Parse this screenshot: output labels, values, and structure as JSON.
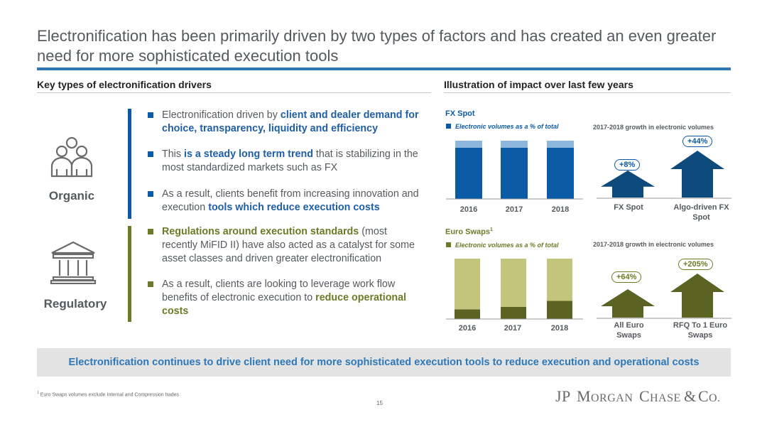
{
  "title": "Electronification has been primarily driven by two types of factors and has created an even greater need for more sophisticated execution tools",
  "left_section": {
    "heading": "Key types of electronification drivers",
    "organic": {
      "label": "Organic",
      "icon": "people-group-icon",
      "bullets": [
        {
          "parts": [
            {
              "t": "Electronification driven by ",
              "h": false
            },
            {
              "t": "client and dealer demand for choice, transparency, liquidity and efficiency",
              "h": true
            }
          ]
        },
        {
          "parts": [
            {
              "t": "This ",
              "h": false
            },
            {
              "t": "is a steady long term trend",
              "h": true
            },
            {
              "t": " that is stabilizing in the most standardized markets such as FX",
              "h": false
            }
          ]
        },
        {
          "parts": [
            {
              "t": "As a result, clients benefit from increasing innovation and execution ",
              "h": false
            },
            {
              "t": "tools which reduce execution costs",
              "h": true
            }
          ]
        }
      ]
    },
    "regulatory": {
      "label": "Regulatory",
      "icon": "bank-building-icon",
      "bullets": [
        {
          "parts": [
            {
              "t": "Regulations around execution standards",
              "h": true
            },
            {
              "t": " (most recently MiFID II) have also acted as a catalyst for some asset classes and driven greater electronification",
              "h": false
            }
          ]
        },
        {
          "parts": [
            {
              "t": "As a result, clients are looking to leverage work flow benefits of electronic execution to ",
              "h": false
            },
            {
              "t": "reduce operational costs",
              "h": true
            }
          ]
        }
      ]
    }
  },
  "right_section": {
    "heading": "Illustration of impact over last few years"
  },
  "colors": {
    "blue": "#0b5aa6",
    "blue_light": "#8db6dc",
    "navy": "#0f4a7d",
    "olive": "#6d7a27",
    "olive_dark": "#5b6322",
    "olive_light": "#c3c57c",
    "accent_blue": "#2f78b8"
  },
  "chart_data": [
    {
      "type": "bar",
      "title": "FX Spot",
      "legend": "Electronic volumes as a % of total",
      "categories": [
        "2016",
        "2017",
        "2018"
      ],
      "stacked": true,
      "series": [
        {
          "name": "Electronic volumes as a % of total",
          "values": [
            88,
            88,
            88
          ]
        },
        {
          "values": [
            12,
            12,
            12
          ]
        }
      ],
      "ylim": [
        0,
        100
      ]
    },
    {
      "type": "bar",
      "title": "2017-2018 growth in electronic volumes",
      "categories": [
        "FX Spot",
        "Algo-driven FX Spot"
      ],
      "values": [
        8,
        44
      ],
      "data_labels": [
        "+8%",
        "+44%"
      ]
    },
    {
      "type": "bar",
      "title": "Euro Swaps",
      "title_superscript": "1",
      "legend": "Electronic volumes as a % of total",
      "categories": [
        "2016",
        "2017",
        "2018"
      ],
      "stacked": true,
      "series": [
        {
          "name": "Electronic volumes as a % of total",
          "values": [
            16,
            20,
            30
          ]
        },
        {
          "values": [
            84,
            80,
            70
          ]
        }
      ],
      "ylim": [
        0,
        100
      ]
    },
    {
      "type": "bar",
      "title": "2017-2018 growth in electronic volumes",
      "categories": [
        "All Euro Swaps",
        "RFQ To 1 Euro Swaps"
      ],
      "values": [
        64,
        205
      ],
      "data_labels": [
        "+64%",
        "+205%"
      ]
    }
  ],
  "banner": "Electronification continues to drive client need for more sophisticated execution tools to reduce execution and operational costs",
  "footnote_marker": "1",
  "footnote": "Euro Swaps volumes exclude Internal and Compression trades",
  "page_number": "15",
  "logo": "JPMORGAN CHASE & CO."
}
